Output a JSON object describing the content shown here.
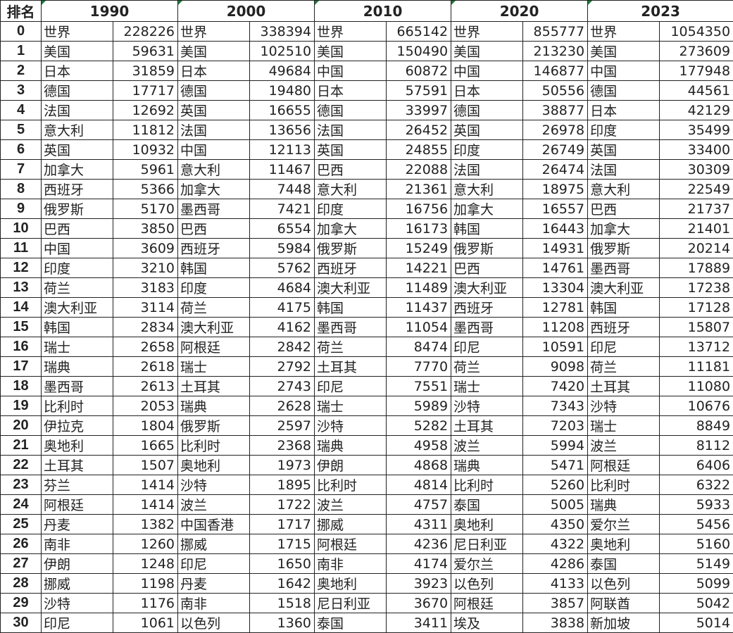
{
  "header": {
    "rank_label": "排名",
    "years": [
      "1990",
      "2000",
      "2010",
      "2020",
      "2023"
    ]
  },
  "rows": [
    {
      "rank": "0",
      "cells": [
        [
          "世界",
          "228226"
        ],
        [
          "世界",
          "338394"
        ],
        [
          "世界",
          "665142"
        ],
        [
          "世界",
          "855777"
        ],
        [
          "世界",
          "1054350"
        ]
      ]
    },
    {
      "rank": "1",
      "cells": [
        [
          "美国",
          "59631"
        ],
        [
          "美国",
          "102510"
        ],
        [
          "美国",
          "150490"
        ],
        [
          "美国",
          "213230"
        ],
        [
          "美国",
          "273609"
        ]
      ]
    },
    {
      "rank": "2",
      "cells": [
        [
          "日本",
          "31859"
        ],
        [
          "日本",
          "49684"
        ],
        [
          "中国",
          "60872"
        ],
        [
          "中国",
          "146877"
        ],
        [
          "中国",
          "177948"
        ]
      ]
    },
    {
      "rank": "3",
      "cells": [
        [
          "德国",
          "17717"
        ],
        [
          "德国",
          "19480"
        ],
        [
          "日本",
          "57591"
        ],
        [
          "日本",
          "50556"
        ],
        [
          "德国",
          "44561"
        ]
      ]
    },
    {
      "rank": "4",
      "cells": [
        [
          "法国",
          "12692"
        ],
        [
          "英国",
          "16655"
        ],
        [
          "德国",
          "33997"
        ],
        [
          "德国",
          "38877"
        ],
        [
          "日本",
          "42129"
        ]
      ]
    },
    {
      "rank": "5",
      "cells": [
        [
          "意大利",
          "11812"
        ],
        [
          "法国",
          "13656"
        ],
        [
          "法国",
          "26452"
        ],
        [
          "英国",
          "26978"
        ],
        [
          "印度",
          "35499"
        ]
      ]
    },
    {
      "rank": "6",
      "cells": [
        [
          "英国",
          "10932"
        ],
        [
          "中国",
          "12113"
        ],
        [
          "英国",
          "24855"
        ],
        [
          "印度",
          "26749"
        ],
        [
          "英国",
          "33400"
        ]
      ]
    },
    {
      "rank": "7",
      "cells": [
        [
          "加拿大",
          "5961"
        ],
        [
          "意大利",
          "11467"
        ],
        [
          "巴西",
          "22088"
        ],
        [
          "法国",
          "26474"
        ],
        [
          "法国",
          "30309"
        ]
      ]
    },
    {
      "rank": "8",
      "cells": [
        [
          "西班牙",
          "5366"
        ],
        [
          "加拿大",
          "7448"
        ],
        [
          "意大利",
          "21361"
        ],
        [
          "意大利",
          "18975"
        ],
        [
          "意大利",
          "22549"
        ]
      ]
    },
    {
      "rank": "9",
      "cells": [
        [
          "俄罗斯",
          "5170"
        ],
        [
          "墨西哥",
          "7421"
        ],
        [
          "印度",
          "16756"
        ],
        [
          "加拿大",
          "16557"
        ],
        [
          "巴西",
          "21737"
        ]
      ]
    },
    {
      "rank": "10",
      "cells": [
        [
          "巴西",
          "3850"
        ],
        [
          "巴西",
          "6554"
        ],
        [
          "加拿大",
          "16173"
        ],
        [
          "韩国",
          "16443"
        ],
        [
          "加拿大",
          "21401"
        ]
      ]
    },
    {
      "rank": "11",
      "cells": [
        [
          "中国",
          "3609"
        ],
        [
          "西班牙",
          "5984"
        ],
        [
          "俄罗斯",
          "15249"
        ],
        [
          "俄罗斯",
          "14931"
        ],
        [
          "俄罗斯",
          "20214"
        ]
      ]
    },
    {
      "rank": "12",
      "cells": [
        [
          "印度",
          "3210"
        ],
        [
          "韩国",
          "5762"
        ],
        [
          "西班牙",
          "14221"
        ],
        [
          "巴西",
          "14761"
        ],
        [
          "墨西哥",
          "17889"
        ]
      ]
    },
    {
      "rank": "13",
      "cells": [
        [
          "荷兰",
          "3183"
        ],
        [
          "印度",
          "4684"
        ],
        [
          "澳大利亚",
          "11489"
        ],
        [
          "澳大利亚",
          "13304"
        ],
        [
          "澳大利亚",
          "17238"
        ]
      ]
    },
    {
      "rank": "14",
      "cells": [
        [
          "澳大利亚",
          "3114"
        ],
        [
          "荷兰",
          "4175"
        ],
        [
          "韩国",
          "11437"
        ],
        [
          "西班牙",
          "12781"
        ],
        [
          "韩国",
          "17128"
        ]
      ]
    },
    {
      "rank": "15",
      "cells": [
        [
          "韩国",
          "2834"
        ],
        [
          "澳大利亚",
          "4162"
        ],
        [
          "墨西哥",
          "11054"
        ],
        [
          "墨西哥",
          "11208"
        ],
        [
          "西班牙",
          "15807"
        ]
      ]
    },
    {
      "rank": "16",
      "cells": [
        [
          "瑞士",
          "2658"
        ],
        [
          "阿根廷",
          "2842"
        ],
        [
          "荷兰",
          "8474"
        ],
        [
          "印尼",
          "10591"
        ],
        [
          "印尼",
          "13712"
        ]
      ]
    },
    {
      "rank": "17",
      "cells": [
        [
          "瑞典",
          "2618"
        ],
        [
          "瑞士",
          "2792"
        ],
        [
          "土耳其",
          "7770"
        ],
        [
          "荷兰",
          "9098"
        ],
        [
          "荷兰",
          "11181"
        ]
      ]
    },
    {
      "rank": "18",
      "cells": [
        [
          "墨西哥",
          "2613"
        ],
        [
          "土耳其",
          "2743"
        ],
        [
          "印尼",
          "7551"
        ],
        [
          "瑞士",
          "7420"
        ],
        [
          "土耳其",
          "11080"
        ]
      ]
    },
    {
      "rank": "19",
      "cells": [
        [
          "比利时",
          "2053"
        ],
        [
          "瑞典",
          "2628"
        ],
        [
          "瑞士",
          "5989"
        ],
        [
          "沙特",
          "7343"
        ],
        [
          "沙特",
          "10676"
        ]
      ]
    },
    {
      "rank": "20",
      "cells": [
        [
          "伊拉克",
          "1804"
        ],
        [
          "俄罗斯",
          "2597"
        ],
        [
          "沙特",
          "5282"
        ],
        [
          "土耳其",
          "7203"
        ],
        [
          "瑞士",
          "8849"
        ]
      ]
    },
    {
      "rank": "21",
      "cells": [
        [
          "奥地利",
          "1665"
        ],
        [
          "比利时",
          "2368"
        ],
        [
          "瑞典",
          "4958"
        ],
        [
          "波兰",
          "5994"
        ],
        [
          "波兰",
          "8112"
        ]
      ]
    },
    {
      "rank": "22",
      "cells": [
        [
          "土耳其",
          "1507"
        ],
        [
          "奥地利",
          "1973"
        ],
        [
          "伊朗",
          "4868"
        ],
        [
          "瑞典",
          "5471"
        ],
        [
          "阿根廷",
          "6406"
        ]
      ]
    },
    {
      "rank": "23",
      "cells": [
        [
          "芬兰",
          "1414"
        ],
        [
          "沙特",
          "1895"
        ],
        [
          "比利时",
          "4814"
        ],
        [
          "比利时",
          "5260"
        ],
        [
          "比利时",
          "6322"
        ]
      ]
    },
    {
      "rank": "24",
      "cells": [
        [
          "阿根廷",
          "1414"
        ],
        [
          "波兰",
          "1722"
        ],
        [
          "波兰",
          "4757"
        ],
        [
          "泰国",
          "5005"
        ],
        [
          "瑞典",
          "5933"
        ]
      ]
    },
    {
      "rank": "25",
      "cells": [
        [
          "丹麦",
          "1382"
        ],
        [
          "中国香港",
          "1717"
        ],
        [
          "挪威",
          "4311"
        ],
        [
          "奥地利",
          "4350"
        ],
        [
          "爱尔兰",
          "5456"
        ]
      ]
    },
    {
      "rank": "26",
      "cells": [
        [
          "南非",
          "1260"
        ],
        [
          "挪威",
          "1715"
        ],
        [
          "阿根廷",
          "4236"
        ],
        [
          "尼日利亚",
          "4322"
        ],
        [
          "奥地利",
          "5160"
        ]
      ]
    },
    {
      "rank": "27",
      "cells": [
        [
          "伊朗",
          "1248"
        ],
        [
          "印尼",
          "1650"
        ],
        [
          "南非",
          "4174"
        ],
        [
          "爱尔兰",
          "4286"
        ],
        [
          "泰国",
          "5149"
        ]
      ]
    },
    {
      "rank": "28",
      "cells": [
        [
          "挪威",
          "1198"
        ],
        [
          "丹麦",
          "1642"
        ],
        [
          "奥地利",
          "3923"
        ],
        [
          "以色列",
          "4133"
        ],
        [
          "以色列",
          "5099"
        ]
      ]
    },
    {
      "rank": "29",
      "cells": [
        [
          "沙特",
          "1176"
        ],
        [
          "南非",
          "1518"
        ],
        [
          "尼日利亚",
          "3670"
        ],
        [
          "阿根廷",
          "3857"
        ],
        [
          "阿联酋",
          "5042"
        ]
      ]
    },
    {
      "rank": "30",
      "cells": [
        [
          "印尼",
          "1061"
        ],
        [
          "以色列",
          "1360"
        ],
        [
          "泰国",
          "3411"
        ],
        [
          "埃及",
          "3838"
        ],
        [
          "新加坡",
          "5014"
        ]
      ]
    }
  ]
}
